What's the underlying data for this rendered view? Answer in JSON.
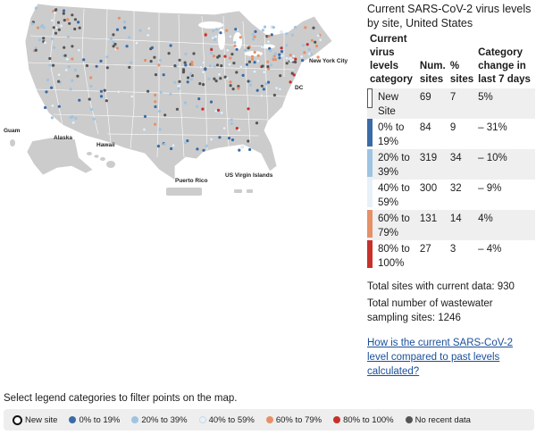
{
  "panel": {
    "title": "Current SARS-CoV-2 virus levels by site, United States",
    "headers": {
      "category": "Current virus levels category",
      "num_sites": "Num. sites",
      "pct_sites": "% sites",
      "change": "Category change in last 7 days"
    },
    "rows": [
      {
        "label": "New Site",
        "num": "69",
        "pct": "7",
        "change": "5%",
        "color": "#ffffff"
      },
      {
        "label": "0% to 19%",
        "num": "84",
        "pct": "9",
        "change": "– 31%",
        "color": "#3a6aa8"
      },
      {
        "label": "20% to 39%",
        "num": "319",
        "pct": "34",
        "change": "– 10%",
        "color": "#9ec4e2"
      },
      {
        "label": "40% to 59%",
        "num": "300",
        "pct": "32",
        "change": "– 9%",
        "color": "#e8f1f8"
      },
      {
        "label": "60% to 79%",
        "num": "131",
        "pct": "14",
        "change": "4%",
        "color": "#e69067"
      },
      {
        "label": "80% to 100%",
        "num": "27",
        "pct": "3",
        "change": "– 4%",
        "color": "#c8302a"
      }
    ],
    "total_current": "Total sites with current data: 930",
    "total_sampling": "Total number of wastewater sampling sites: 1246",
    "link_text": "How is the current SARS-CoV-2 level compared to past levels calculated?"
  },
  "map": {
    "labels": {
      "new_york_city": "New York City",
      "dc": "DC",
      "guam": "Guam",
      "alaska": "Alaska",
      "hawaii": "Hawaii",
      "puerto_rico": "Puerto Rico",
      "usvi": "US Virgin Islands"
    },
    "colors": {
      "land": "#cccccc",
      "border": "#ffffff"
    }
  },
  "filter_note": "Select legend categories to filter points on the map.",
  "legend": [
    {
      "label": "New site",
      "color": "#ffffff",
      "icon": "ring-icon"
    },
    {
      "label": "0% to 19%",
      "color": "#3a6aa8",
      "icon": "dot-icon"
    },
    {
      "label": "20% to 39%",
      "color": "#9ec4e2",
      "icon": "dot-icon"
    },
    {
      "label": "40% to 59%",
      "color": "#e8f1f8",
      "icon": "dot-icon"
    },
    {
      "label": "60% to 79%",
      "color": "#e69067",
      "icon": "dot-icon"
    },
    {
      "label": "80% to 100%",
      "color": "#c8302a",
      "icon": "dot-icon"
    },
    {
      "label": "No recent data",
      "color": "#555555",
      "icon": "dot-icon"
    }
  ]
}
